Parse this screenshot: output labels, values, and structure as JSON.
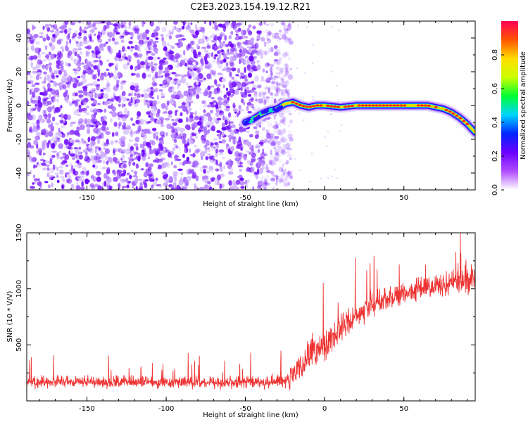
{
  "chart_data": [
    {
      "type": "heatmap",
      "title": "C2E3.2023.154.19.12.R21",
      "xlabel": "Height of straight line (km)",
      "ylabel": "Frequency (Hz)",
      "xlim": [
        -188,
        95
      ],
      "ylim": [
        -50,
        50
      ],
      "x_ticks": [
        "-150",
        "-100",
        "-50",
        "0",
        "50"
      ],
      "y_ticks": [
        "-40",
        "-20",
        "0",
        "20",
        "40"
      ],
      "grid": false,
      "noise_region_x": [
        -188,
        -25
      ],
      "signal_track": {
        "x": [
          -50,
          -45,
          -40,
          -35,
          -30,
          -25,
          -20,
          -15,
          -10,
          -5,
          0,
          10,
          20,
          30,
          40,
          50,
          60,
          65,
          70,
          75,
          80,
          85,
          90,
          95
        ],
        "y": [
          -10,
          -8,
          -5,
          -3,
          -2,
          1,
          2,
          0,
          -1,
          0,
          0,
          -1,
          0,
          0,
          0,
          0,
          0,
          0,
          -1,
          -2,
          -4,
          -7,
          -11,
          -16
        ]
      },
      "colorbar": {
        "label": "Normalized spectral amplitude",
        "range": [
          0,
          1
        ],
        "ticks": [
          "0.0",
          "0.2",
          "0.4",
          "0.6",
          "0.8"
        ],
        "colors": [
          "#ffffff",
          "#b04dff",
          "#6a00ff",
          "#0024ff",
          "#00d5ff",
          "#00ff33",
          "#ccff00",
          "#ffdd00",
          "#ff5500",
          "#ff0055"
        ]
      }
    },
    {
      "type": "line",
      "title": "",
      "xlabel": "Height of straight line (km)",
      "ylabel": "SNR (10 * V/V)",
      "xlim": [
        -188,
        95
      ],
      "ylim": [
        0,
        1500
      ],
      "x_ticks": [
        "-150",
        "-100",
        "-50",
        "0",
        "50"
      ],
      "y_ticks": [
        "500",
        "1000",
        "1500"
      ],
      "grid": false,
      "color": "#ee3333",
      "series": [
        {
          "x": [
            -188,
            -150,
            -100,
            -50,
            -30,
            -25,
            -20,
            -15,
            -10,
            -5,
            0,
            10,
            20,
            30,
            40,
            50,
            60,
            70,
            80,
            90,
            95
          ],
          "baseline": [
            170,
            170,
            165,
            165,
            170,
            180,
            220,
            300,
            380,
            440,
            500,
            650,
            760,
            860,
            920,
            960,
            1000,
            1030,
            1050,
            1080,
            1100
          ],
          "spread": [
            75,
            75,
            75,
            80,
            90,
            110,
            150,
            190,
            210,
            210,
            200,
            180,
            170,
            160,
            150,
            140,
            140,
            150,
            170,
            190,
            200
          ]
        }
      ]
    }
  ]
}
